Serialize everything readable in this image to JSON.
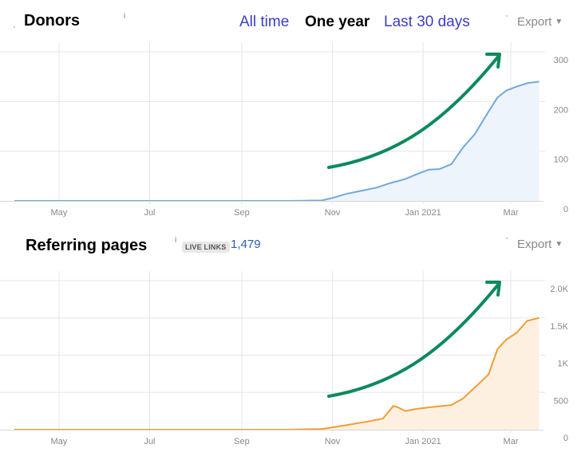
{
  "donors": {
    "title": "Donors",
    "info_icon": "i",
    "tabs": [
      {
        "label": "All time",
        "active": false
      },
      {
        "label": "One year",
        "active": true
      },
      {
        "label": "Last 30 days",
        "active": false
      }
    ],
    "export_label": "Export"
  },
  "referring_pages": {
    "title": "Referring pages",
    "info_icon": "i",
    "badge": "LIVE LINKS",
    "count": "1,479",
    "export_label": "Export"
  },
  "colors": {
    "donors_line": "#6fa8dc",
    "donors_fill": "#eef4fb",
    "refpages_line": "#f39c34",
    "refpages_fill": "#fdf0e1",
    "arrow": "#0b8a5a",
    "grid": "#e6e6e6",
    "axis_text": "#888888",
    "tab_link": "#3c3cc8"
  },
  "chart_data": [
    {
      "type": "area",
      "title": "Donors",
      "x_tick_labels": [
        "May",
        "Jul",
        "Sep",
        "Nov",
        "Jan 2021",
        "Mar"
      ],
      "y_tick_labels": [
        "0",
        "100",
        "200",
        "300"
      ],
      "ylim": [
        0,
        300
      ],
      "grid": true,
      "x": [
        "2020-04-01",
        "2020-05-01",
        "2020-06-01",
        "2020-07-01",
        "2020-08-01",
        "2020-09-01",
        "2020-10-01",
        "2020-10-25",
        "2020-11-01",
        "2020-11-10",
        "2020-11-20",
        "2020-12-01",
        "2020-12-10",
        "2020-12-20",
        "2020-12-28",
        "2021-01-05",
        "2021-01-12",
        "2021-01-20",
        "2021-01-28",
        "2021-02-05",
        "2021-02-12",
        "2021-02-20",
        "2021-02-26",
        "2021-03-05",
        "2021-03-12",
        "2021-03-20"
      ],
      "values": [
        0,
        0,
        0,
        0,
        0,
        0,
        0,
        1,
        6,
        14,
        20,
        27,
        36,
        44,
        54,
        63,
        64,
        74,
        108,
        135,
        170,
        208,
        222,
        230,
        237,
        240
      ]
    },
    {
      "type": "area",
      "title": "Referring pages",
      "x_tick_labels": [
        "May",
        "Jul",
        "Sep",
        "Nov",
        "Jan 2021",
        "Mar"
      ],
      "y_tick_labels": [
        "0",
        "500",
        "1K",
        "1.5K",
        "2.0K"
      ],
      "ylim": [
        0,
        2000
      ],
      "grid": true,
      "x": [
        "2020-04-01",
        "2020-05-01",
        "2020-06-01",
        "2020-07-01",
        "2020-08-01",
        "2020-09-01",
        "2020-10-01",
        "2020-10-25",
        "2020-11-10",
        "2020-11-25",
        "2020-12-05",
        "2020-12-12",
        "2020-12-15",
        "2020-12-20",
        "2020-12-28",
        "2021-01-10",
        "2021-01-20",
        "2021-01-28",
        "2021-02-05",
        "2021-02-14",
        "2021-02-20",
        "2021-02-26",
        "2021-03-05",
        "2021-03-12",
        "2021-03-20"
      ],
      "values": [
        0,
        0,
        0,
        0,
        0,
        0,
        0,
        10,
        60,
        110,
        150,
        320,
        300,
        250,
        280,
        310,
        330,
        420,
        570,
        740,
        1080,
        1210,
        1300,
        1460,
        1500
      ]
    }
  ]
}
